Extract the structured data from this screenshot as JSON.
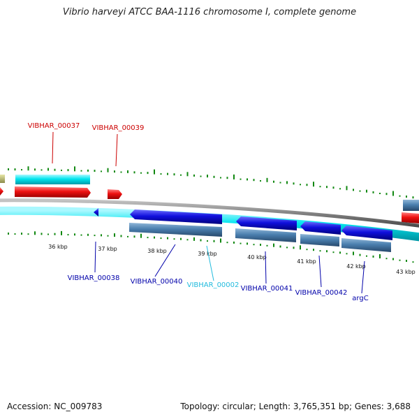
{
  "title": "Vibrio harveyi ATCC BAA-1116 chromosome I, complete genome",
  "footer": {
    "accession": "Accession: NC_009783",
    "stats": "Topology: circular; Length: 3,765,351 bp; Genes: 3,688"
  },
  "ruler": {
    "labels": [
      "36 kbp",
      "37 kbp",
      "38 kbp",
      "39 kbp",
      "40 kbp",
      "41 kbp",
      "42 kbp",
      "43 kbp"
    ]
  },
  "gene_labels": {
    "top": [
      "VIBHAR_00037",
      "VIBHAR_00039"
    ],
    "bottom": [
      "VIBHAR_00038",
      "VIBHAR_00040",
      "VIBHAR_00002",
      "VIBHAR_00041",
      "VIBHAR_00042",
      "argC"
    ]
  },
  "colors": {
    "forward_cds": "#00e5ee",
    "forward_rna": "#ee1111",
    "reverse_cds": "#1010dd",
    "reverse_gene": "#4a7fae",
    "backbone": "#7f7f7f",
    "skew_tick": "#118811",
    "top_label": "#cc0000",
    "bottom_label": "#0000aa",
    "ncrna_label": "#22bbdd"
  }
}
